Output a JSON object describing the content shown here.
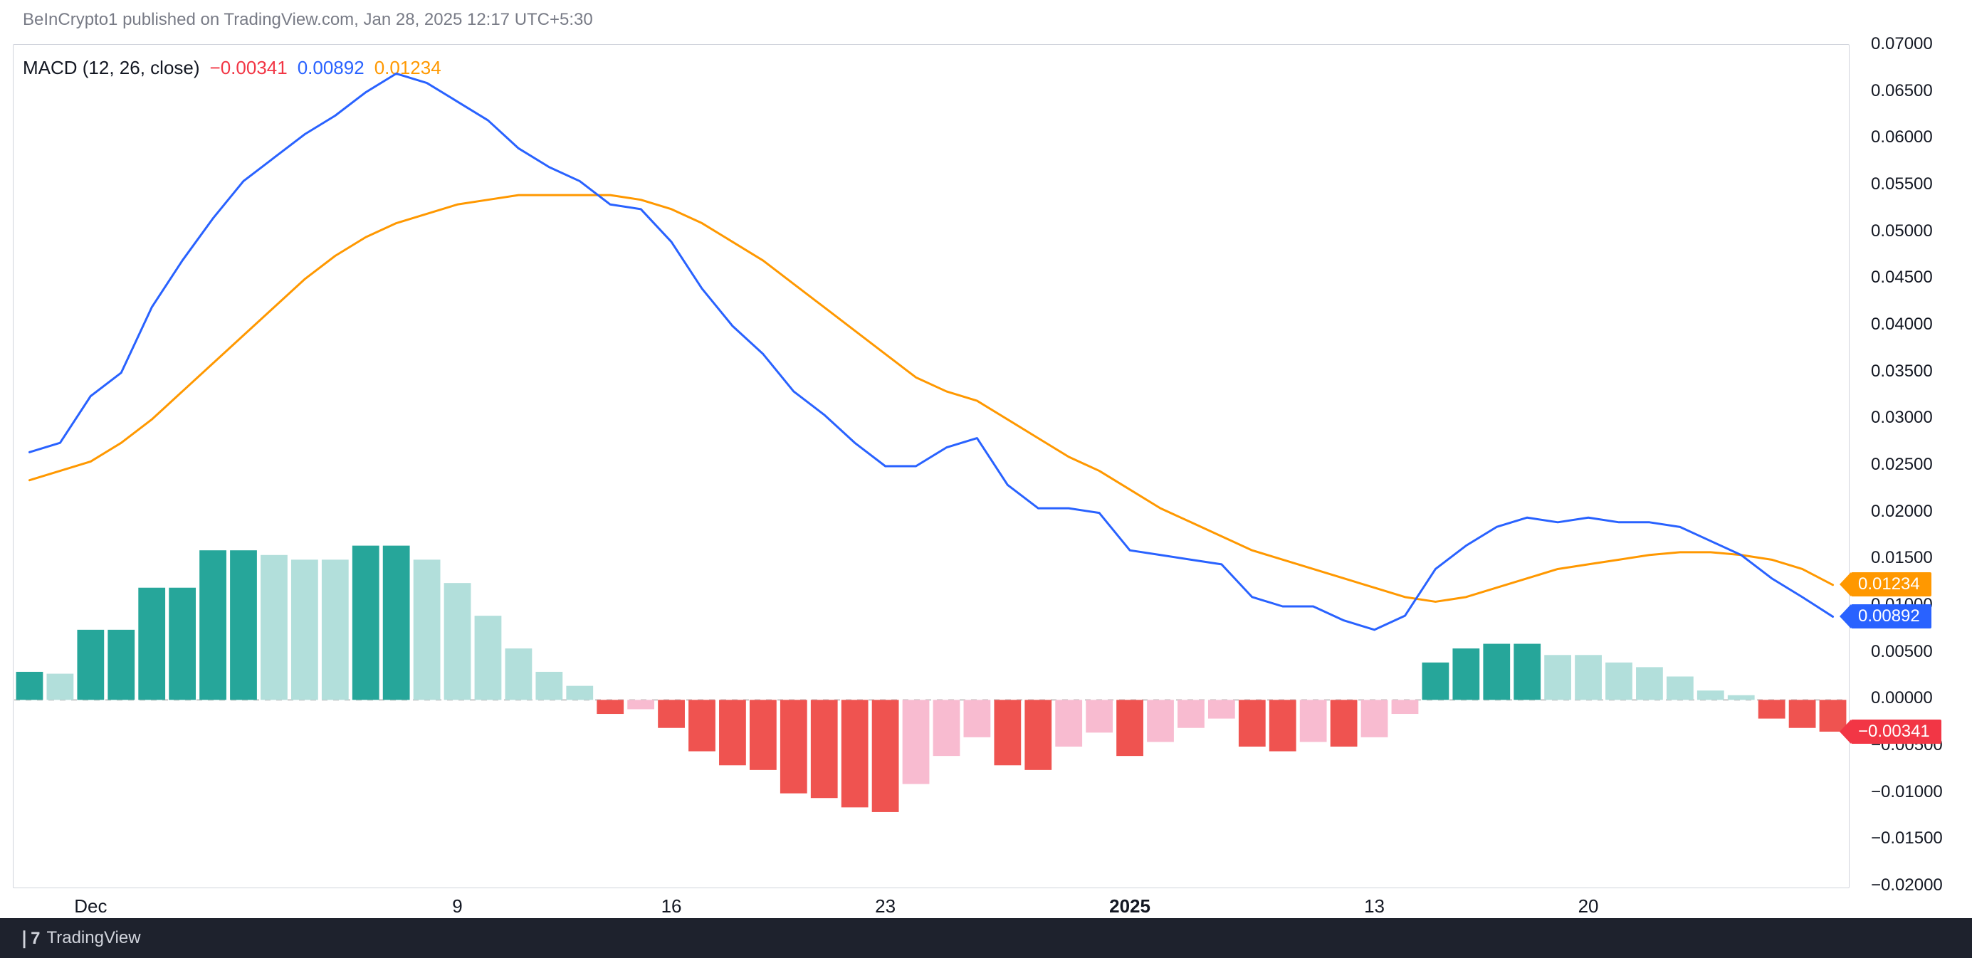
{
  "header": {
    "text": "BeInCrypto1 published on TradingView.com, Jan 28, 2025 12:17 UTC+5:30"
  },
  "legend": {
    "title": "MACD (12, 26, close)",
    "hist_value": "−0.00341",
    "macd_value": "0.00892",
    "signal_value": "0.01234",
    "hist_color": "#f23645",
    "macd_color": "#2962ff",
    "signal_color": "#ff9800"
  },
  "footer": {
    "brand": "TradingView",
    "logo_glyph": "❘7"
  },
  "chart": {
    "type": "macd",
    "background_color": "#ffffff",
    "border_color": "#d1d4dc",
    "grid_color": "#e0e3eb",
    "zero_line_color": "#c8c8c8",
    "line_width": 3,
    "bar_gap_ratio": 0.12,
    "y": {
      "min": -0.02,
      "max": 0.07,
      "ticks": [
        0.07,
        0.065,
        0.06,
        0.055,
        0.05,
        0.045,
        0.04,
        0.035,
        0.03,
        0.025,
        0.02,
        0.015,
        0.01,
        0.005,
        0.0,
        -0.005,
        -0.01,
        -0.015,
        -0.02
      ],
      "tick_labels": [
        "0.07000",
        "0.06500",
        "0.06000",
        "0.05500",
        "0.05000",
        "0.04500",
        "0.04000",
        "0.03500",
        "0.03000",
        "0.02500",
        "0.02000",
        "0.01500",
        "0.01000",
        "0.00500",
        "0.00000",
        "−0.00500",
        "−0.01000",
        "−0.01500",
        "−0.02000"
      ],
      "label_fontsize": 24,
      "label_color": "#131722"
    },
    "x": {
      "n_bars": 60,
      "ticks": [
        {
          "index": 2,
          "label": "Dec",
          "bold": false
        },
        {
          "index": 14,
          "label": "9",
          "bold": false
        },
        {
          "index": 21,
          "label": "16",
          "bold": false
        },
        {
          "index": 28,
          "label": "23",
          "bold": false
        },
        {
          "index": 36,
          "label": "2025",
          "bold": true
        },
        {
          "index": 44,
          "label": "13",
          "bold": false
        },
        {
          "index": 51,
          "label": "20",
          "bold": false
        }
      ],
      "label_fontsize": 26,
      "label_color": "#131722"
    },
    "price_tags": [
      {
        "value": 0.01234,
        "label": "0.01234",
        "bg": "#ff9800"
      },
      {
        "value": 0.00892,
        "label": "0.00892",
        "bg": "#2962ff"
      },
      {
        "value": -0.00341,
        "label": "−0.00341",
        "bg": "#f23645"
      }
    ],
    "histogram": {
      "pos_strong_color": "#26a69a",
      "pos_weak_color": "#b2dfdb",
      "neg_strong_color": "#ef5350",
      "neg_weak_color": "#f8bbd0",
      "values": [
        0.003,
        0.0028,
        0.0075,
        0.0075,
        0.012,
        0.012,
        0.016,
        0.016,
        0.0155,
        0.015,
        0.015,
        0.0165,
        0.0165,
        0.015,
        0.0125,
        0.009,
        0.0055,
        0.003,
        0.0015,
        -0.0015,
        -0.001,
        -0.003,
        -0.0055,
        -0.007,
        -0.0075,
        -0.01,
        -0.0105,
        -0.0115,
        -0.012,
        -0.009,
        -0.006,
        -0.004,
        -0.007,
        -0.0075,
        -0.005,
        -0.0035,
        -0.006,
        -0.0045,
        -0.003,
        -0.002,
        -0.005,
        -0.0055,
        -0.0045,
        -0.005,
        -0.004,
        -0.0015,
        0.004,
        0.0055,
        0.006,
        0.006,
        0.0048,
        0.0048,
        0.004,
        0.0035,
        0.0025,
        0.001,
        0.0005,
        -0.002,
        -0.003,
        -0.0034
      ],
      "shade": [
        "ps",
        "pw",
        "ps",
        "ps",
        "ps",
        "ps",
        "ps",
        "ps",
        "pw",
        "pw",
        "pw",
        "ps",
        "ps",
        "pw",
        "pw",
        "pw",
        "pw",
        "pw",
        "pw",
        "ns",
        "nw",
        "ns",
        "ns",
        "ns",
        "ns",
        "ns",
        "ns",
        "ns",
        "ns",
        "nw",
        "nw",
        "nw",
        "ns",
        "ns",
        "nw",
        "nw",
        "ns",
        "nw",
        "nw",
        "nw",
        "ns",
        "ns",
        "nw",
        "ns",
        "nw",
        "nw",
        "ps",
        "ps",
        "ps",
        "ps",
        "pw",
        "pw",
        "pw",
        "pw",
        "pw",
        "pw",
        "pw",
        "ns",
        "ns",
        "ns"
      ]
    },
    "macd_line": {
      "color": "#2962ff",
      "values": [
        0.0265,
        0.0275,
        0.0325,
        0.035,
        0.042,
        0.047,
        0.0515,
        0.0555,
        0.058,
        0.0605,
        0.0625,
        0.065,
        0.067,
        0.066,
        0.064,
        0.062,
        0.059,
        0.057,
        0.0555,
        0.053,
        0.0525,
        0.049,
        0.044,
        0.04,
        0.037,
        0.033,
        0.0305,
        0.0275,
        0.025,
        0.025,
        0.027,
        0.028,
        0.023,
        0.0205,
        0.0205,
        0.02,
        0.016,
        0.0155,
        0.015,
        0.0145,
        0.011,
        0.01,
        0.01,
        0.0085,
        0.0075,
        0.009,
        0.014,
        0.0165,
        0.0185,
        0.0195,
        0.019,
        0.0195,
        0.019,
        0.019,
        0.0185,
        0.017,
        0.0155,
        0.013,
        0.011,
        0.0089
      ]
    },
    "signal_line": {
      "color": "#ff9800",
      "values": [
        0.0235,
        0.0245,
        0.0255,
        0.0275,
        0.03,
        0.033,
        0.036,
        0.039,
        0.042,
        0.045,
        0.0475,
        0.0495,
        0.051,
        0.052,
        0.053,
        0.0535,
        0.054,
        0.054,
        0.054,
        0.054,
        0.0535,
        0.0525,
        0.051,
        0.049,
        0.047,
        0.0445,
        0.042,
        0.0395,
        0.037,
        0.0345,
        0.033,
        0.032,
        0.03,
        0.028,
        0.026,
        0.0245,
        0.0225,
        0.0205,
        0.019,
        0.0175,
        0.016,
        0.015,
        0.014,
        0.013,
        0.012,
        0.011,
        0.0105,
        0.011,
        0.012,
        0.013,
        0.014,
        0.0145,
        0.015,
        0.0155,
        0.0158,
        0.0158,
        0.0155,
        0.015,
        0.014,
        0.0123
      ]
    }
  }
}
